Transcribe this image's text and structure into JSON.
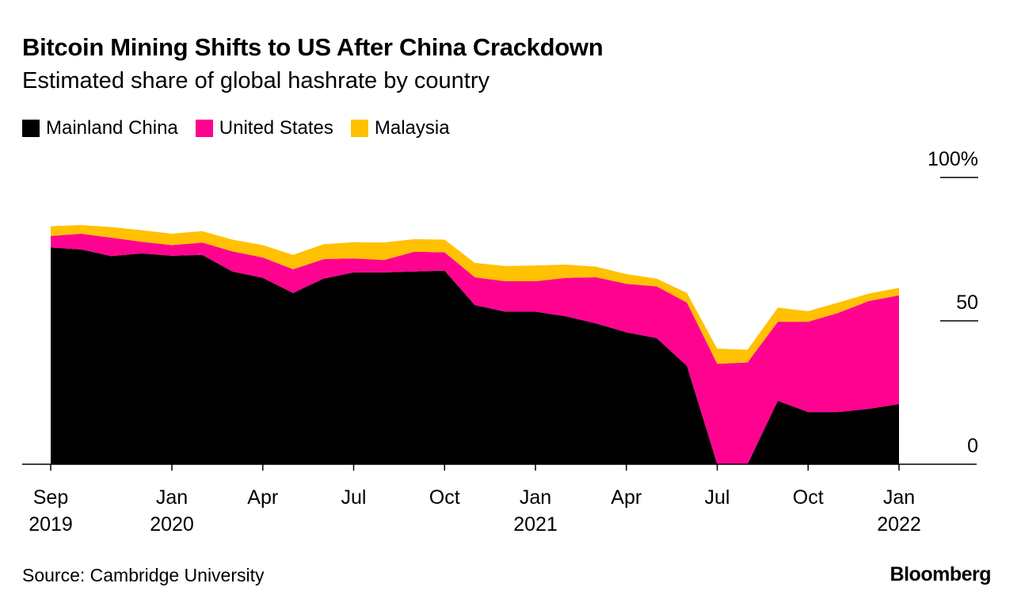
{
  "title": "Bitcoin Mining Shifts to US After China Crackdown",
  "subtitle": "Estimated share of global hashrate by country",
  "source": "Source: Cambridge University",
  "logo": "Bloomberg",
  "chart_data": {
    "type": "area",
    "stacked": true,
    "title": "Bitcoin Mining Shifts to US After China Crackdown",
    "subtitle": "Estimated share of global hashrate by country",
    "x": [
      "2019-09",
      "2019-10",
      "2019-11",
      "2019-12",
      "2020-01",
      "2020-02",
      "2020-03",
      "2020-04",
      "2020-05",
      "2020-06",
      "2020-07",
      "2020-08",
      "2020-09",
      "2020-10",
      "2020-11",
      "2020-12",
      "2021-01",
      "2021-02",
      "2021-03",
      "2021-04",
      "2021-05",
      "2021-06",
      "2021-07",
      "2021-08",
      "2021-09",
      "2021-10",
      "2021-11",
      "2021-12",
      "2022-01"
    ],
    "series": [
      {
        "name": "Mainland China",
        "color": "#000000",
        "values": [
          75.6,
          74.9,
          72.6,
          73.5,
          72.7,
          73.0,
          67.2,
          65.0,
          59.7,
          64.7,
          66.9,
          66.9,
          67.2,
          67.5,
          55.5,
          53.2,
          53.2,
          51.6,
          49.1,
          46.0,
          44.0,
          34.3,
          0,
          0,
          22.1,
          18.2,
          18.2,
          19.3,
          21.0
        ]
      },
      {
        "name": "United States",
        "color": "#ff0390",
        "values": [
          4.0,
          5.5,
          6.4,
          4.1,
          3.7,
          4.3,
          7.0,
          7.1,
          8.3,
          6.8,
          4.9,
          4.3,
          6.9,
          6.4,
          9.7,
          10.6,
          10.6,
          13.4,
          16.1,
          16.9,
          18.0,
          22.1,
          35.0,
          35.5,
          27.6,
          31.5,
          34.6,
          37.6,
          37.9
        ]
      },
      {
        "name": "Malaysia",
        "color": "#ffc100",
        "values": [
          3.4,
          3.0,
          3.7,
          4.0,
          4.0,
          4.0,
          4.1,
          4.3,
          5.0,
          5.2,
          5.6,
          6.1,
          4.4,
          4.4,
          5.0,
          5.3,
          5.5,
          4.6,
          3.7,
          3.4,
          2.7,
          3.3,
          5.3,
          4.4,
          4.9,
          3.7,
          3.6,
          2.6,
          2.6
        ]
      }
    ],
    "x_ticks": [
      {
        "at": "2019-09",
        "month": "Sep",
        "year": "2019"
      },
      {
        "at": "2020-01",
        "month": "Jan",
        "year": "2020"
      },
      {
        "at": "2020-04",
        "month": "Apr",
        "year": ""
      },
      {
        "at": "2020-07",
        "month": "Jul",
        "year": ""
      },
      {
        "at": "2020-10",
        "month": "Oct",
        "year": ""
      },
      {
        "at": "2021-01",
        "month": "Jan",
        "year": "2021"
      },
      {
        "at": "2021-04",
        "month": "Apr",
        "year": ""
      },
      {
        "at": "2021-07",
        "month": "Jul",
        "year": ""
      },
      {
        "at": "2021-10",
        "month": "Oct",
        "year": ""
      },
      {
        "at": "2022-01",
        "month": "Jan",
        "year": "2022"
      }
    ],
    "y_ticks": [
      {
        "value": 100,
        "label": "100%"
      },
      {
        "value": 50,
        "label": "50"
      },
      {
        "value": 0,
        "label": "0"
      }
    ],
    "ylim": [
      0,
      100
    ],
    "y_axis_side": "right",
    "grid": false,
    "legend_position": "top-left"
  }
}
